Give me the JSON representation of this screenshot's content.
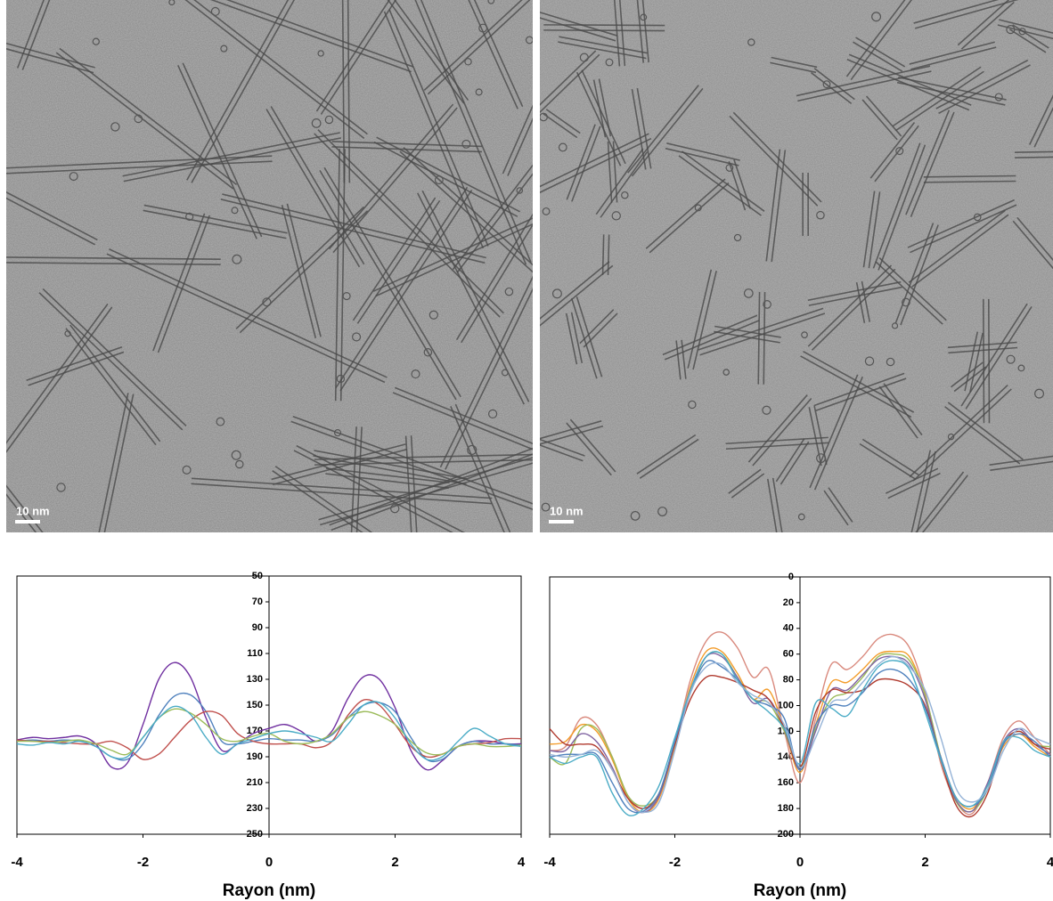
{
  "panels": [
    {
      "scale_bar": "10 nm"
    },
    {
      "scale_bar": "10 nm"
    }
  ],
  "chart_data": [
    {
      "type": "line",
      "x_label": "Rayon (nm)",
      "x": [
        -4,
        -3.75,
        -3.5,
        -3.25,
        -3,
        -2.75,
        -2.5,
        -2.25,
        -2,
        -1.75,
        -1.5,
        -1.25,
        -1,
        -0.75,
        -0.5,
        -0.25,
        0,
        0.25,
        0.5,
        0.75,
        1,
        1.25,
        1.5,
        1.75,
        2,
        2.25,
        2.5,
        2.75,
        3,
        3.25,
        3.5,
        3.75,
        4
      ],
      "xlim": [
        -4,
        4
      ],
      "xticks": [
        -4,
        -2,
        0,
        2,
        4
      ],
      "ylim": [
        250,
        50
      ],
      "yticks": [
        50,
        70,
        90,
        110,
        130,
        150,
        170,
        190,
        210,
        230,
        250
      ],
      "series": [
        {
          "color": "#7030a0",
          "values": [
            177,
            175,
            176,
            175,
            174,
            180,
            198,
            195,
            165,
            130,
            117,
            128,
            160,
            185,
            180,
            172,
            168,
            165,
            170,
            178,
            170,
            145,
            128,
            130,
            152,
            185,
            200,
            193,
            182,
            178,
            178,
            180,
            180
          ]
        },
        {
          "color": "#4f81bd",
          "values": [
            178,
            177,
            178,
            177,
            178,
            182,
            190,
            192,
            180,
            158,
            143,
            142,
            155,
            178,
            180,
            178,
            176,
            177,
            177,
            178,
            173,
            160,
            150,
            148,
            155,
            175,
            192,
            192,
            182,
            178,
            180,
            180,
            181
          ]
        },
        {
          "color": "#c0504d",
          "values": [
            177,
            178,
            178,
            179,
            180,
            180,
            178,
            183,
            192,
            188,
            175,
            162,
            155,
            158,
            172,
            178,
            180,
            180,
            180,
            183,
            178,
            158,
            146,
            150,
            165,
            182,
            190,
            188,
            182,
            180,
            179,
            176,
            176
          ]
        },
        {
          "color": "#9bbb59",
          "values": [
            178,
            178,
            179,
            178,
            177,
            180,
            185,
            188,
            175,
            160,
            153,
            156,
            165,
            176,
            178,
            174,
            172,
            178,
            180,
            178,
            172,
            160,
            155,
            158,
            165,
            178,
            187,
            188,
            182,
            180,
            182,
            182,
            181
          ]
        },
        {
          "color": "#4bacc6",
          "values": [
            180,
            181,
            179,
            180,
            178,
            182,
            190,
            190,
            175,
            160,
            151,
            157,
            175,
            188,
            180,
            176,
            172,
            170,
            172,
            175,
            178,
            165,
            150,
            148,
            160,
            180,
            192,
            190,
            178,
            168,
            174,
            180,
            182
          ]
        }
      ]
    },
    {
      "type": "line",
      "x_label": "Rayon (nm)",
      "x": [
        -4,
        -3.75,
        -3.5,
        -3.25,
        -3,
        -2.75,
        -2.5,
        -2.25,
        -2,
        -1.75,
        -1.5,
        -1.25,
        -1,
        -0.75,
        -0.5,
        -0.25,
        0,
        0.25,
        0.5,
        0.75,
        1,
        1.25,
        1.5,
        1.75,
        2,
        2.25,
        2.5,
        2.75,
        3,
        3.25,
        3.5,
        3.75,
        4
      ],
      "xlim": [
        -4,
        4
      ],
      "xticks": [
        -4,
        -2,
        0,
        2,
        4
      ],
      "ylim": [
        200,
        0
      ],
      "yticks": [
        0,
        20,
        40,
        60,
        80,
        100,
        120,
        140,
        160,
        180,
        200
      ],
      "series": [
        {
          "color": "#d9897d",
          "values": [
            135,
            132,
            110,
            115,
            140,
            170,
            180,
            170,
            130,
            80,
            50,
            43,
            55,
            78,
            72,
            120,
            160,
            110,
            68,
            72,
            62,
            48,
            45,
            55,
            90,
            145,
            175,
            184,
            160,
            125,
            112,
            125,
            138
          ]
        },
        {
          "color": "#f39c2a",
          "values": [
            130,
            128,
            115,
            120,
            142,
            172,
            183,
            172,
            132,
            85,
            58,
            58,
            75,
            95,
            88,
            118,
            152,
            115,
            82,
            82,
            72,
            60,
            58,
            62,
            92,
            140,
            172,
            180,
            162,
            132,
            122,
            132,
            140
          ]
        },
        {
          "color": "#9bbb59",
          "values": [
            140,
            145,
            118,
            118,
            140,
            170,
            178,
            168,
            130,
            90,
            62,
            60,
            78,
            95,
            98,
            120,
            148,
            118,
            95,
            90,
            78,
            62,
            60,
            65,
            92,
            140,
            175,
            182,
            165,
            130,
            120,
            130,
            132
          ]
        },
        {
          "color": "#8064a2",
          "values": [
            135,
            135,
            122,
            128,
            148,
            175,
            183,
            170,
            130,
            88,
            62,
            62,
            78,
            98,
            95,
            118,
            150,
            120,
            88,
            88,
            76,
            64,
            62,
            68,
            95,
            142,
            174,
            182,
            160,
            128,
            118,
            130,
            138
          ]
        },
        {
          "color": "#b03a2e",
          "values": [
            118,
            130,
            130,
            132,
            150,
            172,
            180,
            168,
            130,
            95,
            78,
            78,
            82,
            88,
            95,
            118,
            148,
            105,
            88,
            90,
            88,
            80,
            80,
            85,
            100,
            142,
            178,
            186,
            168,
            130,
            120,
            130,
            134
          ]
        },
        {
          "color": "#4f81bd",
          "values": [
            140,
            138,
            138,
            138,
            160,
            180,
            182,
            168,
            128,
            90,
            66,
            70,
            80,
            95,
            100,
            110,
            150,
            115,
            100,
            100,
            90,
            75,
            72,
            80,
            102,
            140,
            172,
            178,
            165,
            130,
            122,
            128,
            140
          ]
        },
        {
          "color": "#4bacc6",
          "values": [
            140,
            145,
            140,
            140,
            168,
            185,
            180,
            162,
            125,
            88,
            62,
            60,
            80,
            95,
            105,
            118,
            145,
            98,
            102,
            108,
            88,
            70,
            65,
            72,
            105,
            142,
            172,
            178,
            162,
            128,
            125,
            135,
            140
          ]
        },
        {
          "color": "#95b3d7",
          "values": [
            138,
            140,
            138,
            135,
            150,
            175,
            183,
            175,
            135,
            90,
            70,
            68,
            82,
            92,
            98,
            115,
            148,
            125,
            98,
            95,
            82,
            68,
            62,
            70,
            88,
            125,
            165,
            175,
            165,
            135,
            118,
            125,
            130
          ]
        }
      ]
    }
  ]
}
